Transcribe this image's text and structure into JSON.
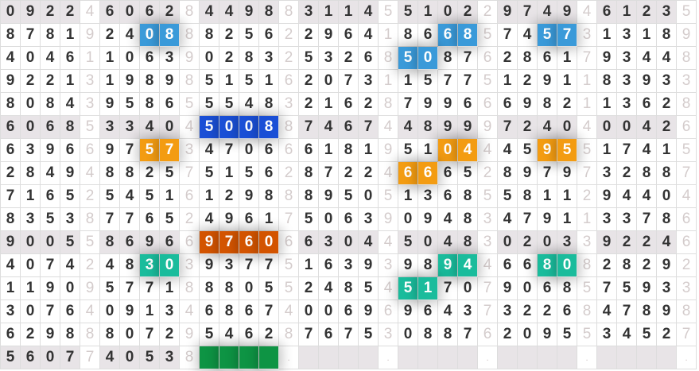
{
  "colors": {
    "blue": "#3a9ad9",
    "darkblue": "#1a4fd6",
    "orange": "#f39c12",
    "darkorange": "#d35400",
    "teal": "#1abc9c",
    "green": "#0e9444"
  },
  "shaded_rows": [
    0,
    5,
    10,
    15
  ],
  "rows": [
    [
      [
        "0922",
        "4"
      ],
      [
        "6062",
        "8"
      ],
      [
        "4498",
        "8"
      ],
      [
        "3114",
        "5"
      ],
      [
        "5102",
        "2"
      ],
      [
        "9749",
        "4"
      ],
      [
        "6123",
        "5"
      ]
    ],
    [
      [
        "8781",
        "9"
      ],
      [
        "2408",
        "8",
        [
          2,
          3
        ],
        "blue"
      ],
      [
        "8256",
        "2"
      ],
      [
        "2964",
        "1"
      ],
      [
        "8668",
        "5",
        [
          2,
          3
        ],
        "blue"
      ],
      [
        "7457",
        "3",
        [
          2,
          3
        ],
        "blue"
      ],
      [
        "1318",
        "9"
      ]
    ],
    [
      [
        "4046",
        "1"
      ],
      [
        "1063",
        "9"
      ],
      [
        "0283",
        "2"
      ],
      [
        "5326",
        "8"
      ],
      [
        "5087",
        "6",
        [
          0,
          1
        ],
        "blue"
      ],
      [
        "2861",
        "7"
      ],
      [
        "9344",
        "8"
      ]
    ],
    [
      [
        "9221",
        "3"
      ],
      [
        "1989",
        "8"
      ],
      [
        "5151",
        "6"
      ],
      [
        "2073",
        "1"
      ],
      [
        "1577",
        "5"
      ],
      [
        "1291",
        "1"
      ],
      [
        "8393",
        "3"
      ]
    ],
    [
      [
        "8084",
        "3"
      ],
      [
        "9586",
        "5"
      ],
      [
        "5548",
        "3"
      ],
      [
        "2162",
        "8"
      ],
      [
        "7996",
        "6"
      ],
      [
        "6982",
        "1"
      ],
      [
        "1362",
        "8"
      ]
    ],
    [
      [
        "6068",
        "5"
      ],
      [
        "3340",
        "4"
      ],
      [
        "5008",
        "8",
        [
          0,
          1,
          2,
          3
        ],
        "darkblue"
      ],
      [
        "7467",
        "4"
      ],
      [
        "4899",
        "9"
      ],
      [
        "7240",
        "4"
      ],
      [
        "0042",
        "6"
      ]
    ],
    [
      [
        "6396",
        "6"
      ],
      [
        "9757",
        "3",
        [
          2,
          3
        ],
        "orange"
      ],
      [
        "4706",
        "6"
      ],
      [
        "6181",
        "9"
      ],
      [
        "5104",
        "4",
        [
          2,
          3
        ],
        "orange"
      ],
      [
        "4595",
        "5",
        [
          2,
          3
        ],
        "orange"
      ],
      [
        "1741",
        "5"
      ]
    ],
    [
      [
        "2849",
        "4"
      ],
      [
        "8825",
        "7"
      ],
      [
        "5156",
        "2"
      ],
      [
        "8722",
        "4"
      ],
      [
        "6665",
        "2",
        [
          0,
          1
        ],
        "orange"
      ],
      [
        "8979",
        "7"
      ],
      [
        "3288",
        "7"
      ]
    ],
    [
      [
        "7165",
        "2"
      ],
      [
        "5451",
        "6"
      ],
      [
        "1298",
        "8"
      ],
      [
        "8950",
        "5"
      ],
      [
        "1368",
        "5"
      ],
      [
        "5811",
        "2"
      ],
      [
        "9440",
        "4"
      ]
    ],
    [
      [
        "8353",
        "8"
      ],
      [
        "7765",
        "2"
      ],
      [
        "4961",
        "7"
      ],
      [
        "5063",
        "9"
      ],
      [
        "0948",
        "3"
      ],
      [
        "4791",
        "1"
      ],
      [
        "3378",
        "6"
      ]
    ],
    [
      [
        "9005",
        "5"
      ],
      [
        "8696",
        "6"
      ],
      [
        "9760",
        "6",
        [
          0,
          1,
          2,
          3
        ],
        "darkorange"
      ],
      [
        "6304",
        "4"
      ],
      [
        "5048",
        "3"
      ],
      [
        "0203",
        "3"
      ],
      [
        "9224",
        "6"
      ]
    ],
    [
      [
        "4074",
        "2"
      ],
      [
        "4830",
        "3",
        [
          2,
          3
        ],
        "teal"
      ],
      [
        "9377",
        "5"
      ],
      [
        "1639",
        "3"
      ],
      [
        "9894",
        "4",
        [
          2,
          3
        ],
        "teal"
      ],
      [
        "6680",
        "8",
        [
          2,
          3
        ],
        "teal"
      ],
      [
        "2829",
        "2"
      ]
    ],
    [
      [
        "1190",
        "9"
      ],
      [
        "5771",
        "8"
      ],
      [
        "8805",
        "5"
      ],
      [
        "2485",
        "4"
      ],
      [
        "5170",
        "7",
        [
          0,
          1
        ],
        "teal"
      ],
      [
        "9068",
        "5"
      ],
      [
        "7593",
        "3"
      ]
    ],
    [
      [
        "3076",
        "4"
      ],
      [
        "0913",
        "4"
      ],
      [
        "6867",
        "4"
      ],
      [
        "0069",
        "6"
      ],
      [
        "9643",
        "7"
      ],
      [
        "3226",
        "8"
      ],
      [
        "4789",
        "8"
      ]
    ],
    [
      [
        "6298",
        "8"
      ],
      [
        "8072",
        "9"
      ],
      [
        "5462",
        "8"
      ],
      [
        "7675",
        "3"
      ],
      [
        "0887",
        "6"
      ],
      [
        "2095",
        "5"
      ],
      [
        "3452",
        "7"
      ]
    ],
    [
      [
        "5607",
        "7"
      ],
      [
        "4053",
        "8"
      ],
      [
        "    ",
        ".",
        [
          0,
          1,
          2,
          3
        ],
        "green"
      ],
      [
        "    ",
        "."
      ],
      [
        "    ",
        "."
      ],
      [
        "    ",
        "."
      ],
      [
        "    ",
        "."
      ]
    ]
  ]
}
